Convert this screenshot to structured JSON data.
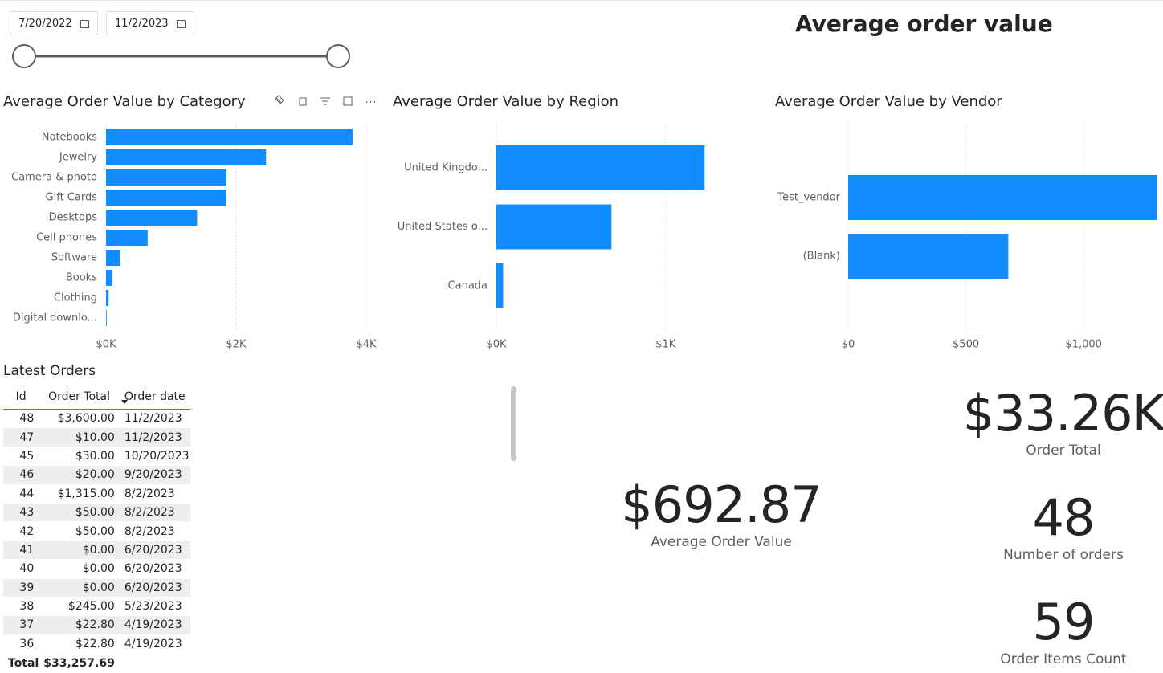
{
  "date_range": {
    "start": "7/20/2022",
    "end": "11/2/2023"
  },
  "title": "Average order value",
  "chart_data": [
    {
      "type": "bar",
      "title": "Average Order Value by Category",
      "categories": [
        "Notebooks",
        "Jewelry",
        "Camera & photo",
        "Gift Cards",
        "Desktops",
        "Cell phones",
        "Software",
        "Books",
        "Clothing",
        "Digital downlo..."
      ],
      "values": [
        3790,
        2460,
        1850,
        1850,
        1400,
        640,
        220,
        100,
        40,
        10
      ],
      "color": "#118DFF",
      "xlim": [
        0,
        4000
      ],
      "xticks": [
        {
          "value": 0,
          "label": "$0K"
        },
        {
          "value": 2000,
          "label": "$2K"
        },
        {
          "value": 4000,
          "label": "$4K"
        }
      ],
      "grid": true
    },
    {
      "type": "bar",
      "title": "Average Order Value by Region",
      "categories": [
        "United Kingdo...",
        "United States o...",
        "Canada"
      ],
      "values": [
        1230,
        680,
        40
      ],
      "color": "#118DFF",
      "xlim": [
        0,
        1300
      ],
      "xticks": [
        {
          "value": 0,
          "label": "$0K"
        },
        {
          "value": 1000,
          "label": "$1K"
        }
      ],
      "grid": true
    },
    {
      "type": "bar",
      "title": "Average Order Value by Vendor",
      "categories": [
        "Test_vendor",
        "(Blank)"
      ],
      "values": [
        1310,
        680
      ],
      "color": "#118DFF",
      "xlim": [
        0,
        1320
      ],
      "xticks": [
        {
          "value": 0,
          "label": "$0"
        },
        {
          "value": 500,
          "label": "$500"
        },
        {
          "value": 1000,
          "label": "$1,000"
        }
      ],
      "grid": true
    }
  ],
  "table": {
    "title": "Latest Orders",
    "columns": [
      "Id",
      "Order Total",
      "Order date"
    ],
    "rows": [
      [
        48,
        "$3,600.00",
        "11/2/2023"
      ],
      [
        47,
        "$10.00",
        "11/2/2023"
      ],
      [
        45,
        "$30.00",
        "10/20/2023"
      ],
      [
        46,
        "$20.00",
        "9/20/2023"
      ],
      [
        44,
        "$1,315.00",
        "8/2/2023"
      ],
      [
        43,
        "$50.00",
        "8/2/2023"
      ],
      [
        42,
        "$50.00",
        "8/2/2023"
      ],
      [
        41,
        "$0.00",
        "6/20/2023"
      ],
      [
        40,
        "$0.00",
        "6/20/2023"
      ],
      [
        39,
        "$0.00",
        "6/20/2023"
      ],
      [
        38,
        "$245.00",
        "5/23/2023"
      ],
      [
        37,
        "$22.80",
        "4/19/2023"
      ],
      [
        36,
        "$22.80",
        "4/19/2023"
      ]
    ],
    "total": [
      "Total",
      "$33,257.69"
    ]
  },
  "cards": [
    {
      "value": "$33.26K",
      "label": "Order Total"
    },
    {
      "value": "48",
      "label": "Number of orders"
    },
    {
      "value": "59",
      "label": "Order Items Count"
    },
    {
      "value": "$692.87",
      "label": "Average Order Value"
    }
  ]
}
